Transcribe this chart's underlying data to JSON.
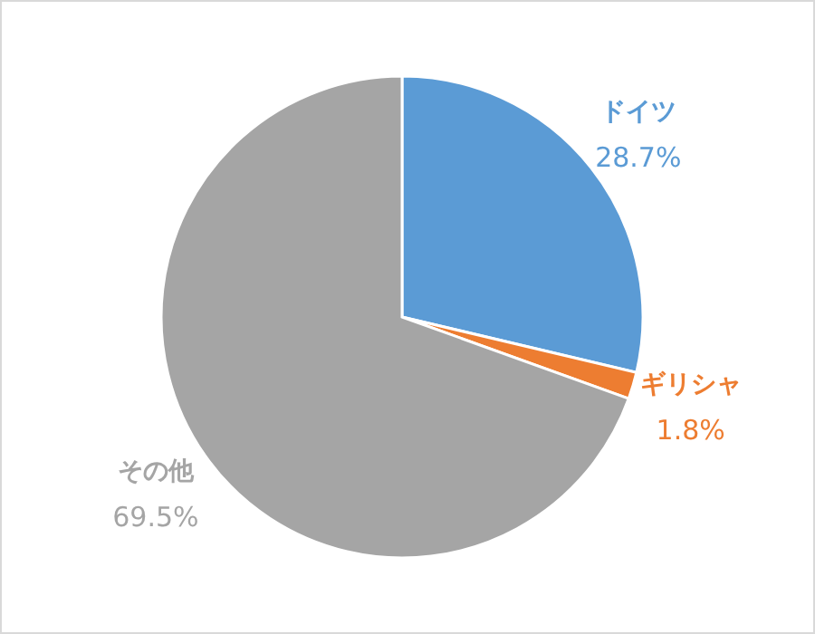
{
  "chart_data": {
    "type": "pie",
    "categories": [
      "ドイツ",
      "ギリシャ",
      "その他"
    ],
    "values": [
      28.7,
      1.8,
      69.5
    ],
    "colors": [
      "#5b9bd5",
      "#ed7d31",
      "#a5a5a5"
    ],
    "value_labels": [
      "28.7%",
      "1.8%",
      "69.5%"
    ],
    "legend": false
  }
}
